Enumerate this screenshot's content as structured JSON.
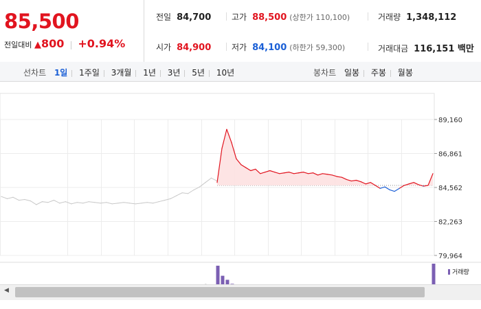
{
  "quote": {
    "price": "85,500",
    "change_label": "전일대비",
    "change_arrow": "▲",
    "change_value": "800",
    "change_pct": "+0.94%"
  },
  "stats": {
    "prev_close_label": "전일",
    "prev_close": "84,700",
    "high_label": "고가",
    "high": "88,500",
    "upper_limit": "(상한가 110,100)",
    "volume_label": "거래량",
    "volume": "1,348,112",
    "open_label": "시가",
    "open": "84,900",
    "low_label": "저가",
    "low": "84,100",
    "lower_limit": "(하한가 59,300)",
    "amount_label": "거래대금",
    "amount": "116,151 백만"
  },
  "tabs": {
    "line_label": "선차트",
    "line_periods": [
      "1일",
      "1주일",
      "3개월",
      "1년",
      "3년",
      "5년",
      "10년"
    ],
    "selected_line": "1일",
    "candle_label": "봉차트",
    "candle_periods": [
      "일봉",
      "주봉",
      "월봉"
    ]
  },
  "colors": {
    "up": "#e1141f",
    "down": "#1a5fd6",
    "prev": "#c8c8c8",
    "volume": "#7b5fb3"
  },
  "chart_data": {
    "type": "line",
    "y_ticks": [
      "89,160",
      "86,861",
      "84,562",
      "82,263",
      "79,964"
    ],
    "ylim": [
      79964,
      89160
    ],
    "reference_price": 84700,
    "legend": "거래량",
    "series": [
      {
        "values": [
          83950,
          83800,
          83900,
          83700,
          83750,
          83650,
          83400,
          83600,
          83550,
          83700,
          83500,
          83600,
          83450,
          83550,
          83500,
          83600,
          83550,
          83500,
          83550,
          83450,
          83500,
          83550,
          83500,
          83450,
          83500,
          83550,
          83500,
          83600,
          83700,
          83800,
          84000,
          84200,
          84150,
          84400,
          84600,
          84900,
          85200,
          85000
        ]
      },
      {
        "values": [
          84900,
          87200,
          88500,
          87600,
          86500,
          86100,
          85900,
          85700,
          85800,
          85500,
          85600,
          85700,
          85600,
          85500,
          85550,
          85600,
          85500,
          85550,
          85600,
          85500,
          85550,
          85400,
          85500,
          85450,
          85400,
          85300,
          85250,
          85100,
          85000,
          85050,
          84950,
          84800,
          84900,
          84700,
          84500,
          84600,
          84400,
          84300,
          84500,
          84700,
          84800,
          84900,
          84750,
          84650,
          84700,
          85500
        ]
      }
    ],
    "volume": {
      "prev": [
        2,
        3,
        2,
        1,
        2,
        3,
        2,
        1,
        2,
        1,
        2,
        2,
        1,
        2,
        1,
        1,
        2,
        1,
        1,
        2,
        1,
        2,
        1,
        1,
        2,
        3,
        2,
        4,
        3,
        5,
        6,
        4,
        7,
        8,
        9,
        10,
        6,
        4
      ],
      "today": [
        28,
        18,
        14,
        10,
        8,
        7,
        6,
        5,
        5,
        4,
        5,
        4,
        3,
        4,
        3,
        3,
        4,
        3,
        3,
        3,
        4,
        3,
        3,
        3,
        4,
        3,
        3,
        3,
        4,
        3,
        3,
        4,
        4,
        3,
        3,
        3,
        4,
        3,
        3,
        3,
        3,
        3,
        3,
        2,
        3,
        30
      ]
    }
  }
}
